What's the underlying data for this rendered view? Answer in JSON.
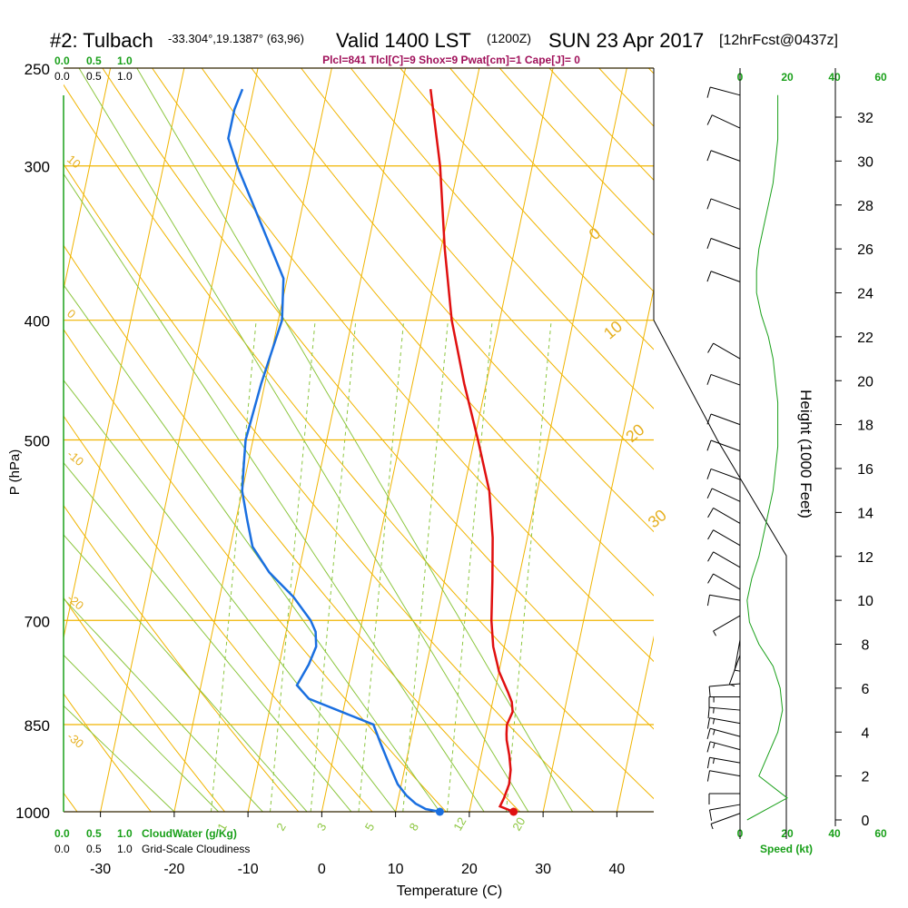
{
  "header": {
    "station": "#2: Tulbach",
    "coords": "-33.304°,19.1387° (63,96)",
    "valid": "Valid 1400 LST",
    "utc": "(1200Z)",
    "date": "SUN 23 Apr 2017",
    "forecast": "[12hrFcst@0437z]",
    "indices": "Plcl=841 Tlcl[C]=9 Shox=9 Pwat[cm]=1 Cape[J]= 0"
  },
  "colors": {
    "isobar": "#f0b400",
    "adiabat": "#8cc63f",
    "dry_adiabat": "#f0b400",
    "temperature": "#e01010",
    "dewpoint": "#1a6fe0",
    "green_text": "#1aa01a",
    "purple_text": "#a0105a"
  },
  "scales": {
    "cloudwater_top": [
      "0.0",
      "0.5",
      "1.0"
    ],
    "cloudiness_top": [
      "0.0",
      "0.5",
      "1.0"
    ],
    "cloudwater_bottom": [
      "0.0",
      "0.5",
      "1.0"
    ],
    "cloudwater_label": "CloudWater (g/Kg)",
    "cloudiness_bottom": [
      "0.0",
      "0.5",
      "1.0"
    ],
    "cloudiness_label": "Grid-Scale Cloudiness",
    "speed_top": [
      "0",
      "20",
      "40",
      "60"
    ],
    "speed_bottom": [
      "0",
      "20",
      "40",
      "60"
    ],
    "speed_label": "Speed (kt)"
  },
  "chart_data": {
    "type": "line",
    "xlabel": "Temperature (C)",
    "ylabel": "P (hPa)",
    "y2label": "Height (1000 Feet)",
    "xlim": [
      -35,
      45
    ],
    "ylim": [
      1000,
      250
    ],
    "x_ticks": [
      -30,
      -20,
      -10,
      0,
      10,
      20,
      30,
      40
    ],
    "pressure_ticks": [
      250,
      300,
      400,
      500,
      700,
      850,
      1000
    ],
    "height_ticks": [
      0,
      2,
      4,
      6,
      8,
      10,
      12,
      14,
      16,
      18,
      20,
      22,
      24,
      26,
      28,
      30,
      32
    ],
    "dry_adiabat_labels": [
      {
        "text": "10",
        "p": 300
      },
      {
        "text": "0",
        "p": 400
      },
      {
        "text": "-10",
        "p": 520
      },
      {
        "text": "-20",
        "p": 680
      },
      {
        "text": "-30",
        "p": 880
      }
    ],
    "moist_adiabat_labels": [
      {
        "text": "0",
        "t": 37,
        "p": 345
      },
      {
        "text": "10",
        "t": 39,
        "p": 415
      },
      {
        "text": "20",
        "t": 42,
        "p": 503
      },
      {
        "text": "30",
        "t": 45,
        "p": 590
      }
    ],
    "mixing_ratio_labels": [
      "1",
      "2",
      "3",
      "5",
      "8",
      "12",
      "20"
    ],
    "series": [
      {
        "name": "Temperature",
        "points": [
          [
            26.0,
            1000
          ],
          [
            24.0,
            990
          ],
          [
            24.3,
            975
          ],
          [
            24.6,
            950
          ],
          [
            24.4,
            925
          ],
          [
            23.8,
            900
          ],
          [
            23.0,
            875
          ],
          [
            22.8,
            865
          ],
          [
            22.6,
            850
          ],
          [
            23.0,
            830
          ],
          [
            22.6,
            815
          ],
          [
            21.8,
            800
          ],
          [
            20.0,
            770
          ],
          [
            18.5,
            735
          ],
          [
            17.5,
            700
          ],
          [
            16.5,
            650
          ],
          [
            15.3,
            600
          ],
          [
            13.5,
            550
          ],
          [
            10.5,
            500
          ],
          [
            7.0,
            450
          ],
          [
            3.5,
            400
          ],
          [
            0.5,
            350
          ],
          [
            -2.5,
            300
          ],
          [
            -6.0,
            260
          ]
        ]
      },
      {
        "name": "Dewpoint",
        "points": [
          [
            16.0,
            1000
          ],
          [
            14.0,
            995
          ],
          [
            12.5,
            985
          ],
          [
            11.0,
            970
          ],
          [
            9.5,
            950
          ],
          [
            8.0,
            920
          ],
          [
            6.0,
            880
          ],
          [
            5.0,
            860
          ],
          [
            4.5,
            850
          ],
          [
            1.0,
            835
          ],
          [
            -5.0,
            810
          ],
          [
            -7.0,
            790
          ],
          [
            -6.0,
            760
          ],
          [
            -5.5,
            735
          ],
          [
            -6.0,
            715
          ],
          [
            -7.0,
            700
          ],
          [
            -10.0,
            670
          ],
          [
            -14.0,
            640
          ],
          [
            -17.0,
            610
          ],
          [
            -18.5,
            580
          ],
          [
            -20.0,
            550
          ],
          [
            -20.5,
            525
          ],
          [
            -21.0,
            500
          ],
          [
            -20.5,
            450
          ],
          [
            -19.5,
            400
          ],
          [
            -20.5,
            370
          ],
          [
            -25.0,
            335
          ],
          [
            -30.0,
            300
          ],
          [
            -32.0,
            285
          ],
          [
            -32.0,
            270
          ],
          [
            -31.5,
            260
          ]
        ]
      }
    ],
    "surface_markers": [
      {
        "name": "Surface Temperature",
        "t": 26.0,
        "p": 1000
      },
      {
        "name": "Surface Dewpoint",
        "t": 16.0,
        "p": 1000
      }
    ],
    "wind_speed_profile_kt": [
      [
        0,
        3
      ],
      [
        1,
        20
      ],
      [
        2,
        8
      ],
      [
        3,
        12
      ],
      [
        4,
        16
      ],
      [
        5,
        18
      ],
      [
        6,
        17
      ],
      [
        7,
        14
      ],
      [
        8,
        8
      ],
      [
        9,
        4
      ],
      [
        10,
        3
      ],
      [
        11,
        5
      ],
      [
        12,
        8
      ],
      [
        13,
        10
      ],
      [
        14,
        12
      ],
      [
        15,
        14
      ],
      [
        16,
        15
      ],
      [
        17,
        16
      ],
      [
        18,
        16
      ],
      [
        19,
        16
      ],
      [
        20,
        15
      ],
      [
        21,
        14
      ],
      [
        22,
        12
      ],
      [
        23,
        9
      ],
      [
        24,
        7
      ],
      [
        25,
        7
      ],
      [
        26,
        8
      ],
      [
        27,
        10
      ],
      [
        28,
        12
      ],
      [
        29,
        14
      ],
      [
        30,
        15
      ],
      [
        31,
        16
      ],
      [
        32,
        16
      ],
      [
        33,
        16
      ]
    ],
    "wind_barbs": [
      {
        "h": 0.3,
        "dir": 250,
        "spd": 5
      },
      {
        "h": 0.7,
        "dir": 260,
        "spd": 10
      },
      {
        "h": 1.2,
        "dir": 270,
        "spd": 10
      },
      {
        "h": 2.0,
        "dir": 280,
        "spd": 10
      },
      {
        "h": 2.6,
        "dir": 280,
        "spd": 15
      },
      {
        "h": 3.2,
        "dir": 285,
        "spd": 15
      },
      {
        "h": 3.8,
        "dir": 285,
        "spd": 15
      },
      {
        "h": 4.4,
        "dir": 280,
        "spd": 15
      },
      {
        "h": 5.0,
        "dir": 275,
        "spd": 15
      },
      {
        "h": 5.6,
        "dir": 270,
        "spd": 15
      },
      {
        "h": 6.2,
        "dir": 265,
        "spd": 10
      },
      {
        "h": 7.5,
        "dir": 200,
        "spd": 5
      },
      {
        "h": 8.2,
        "dir": 190,
        "spd": 5
      },
      {
        "h": 9.3,
        "dir": 240,
        "spd": 5
      },
      {
        "h": 10.0,
        "dir": 280,
        "spd": 10
      },
      {
        "h": 10.5,
        "dir": 300,
        "spd": 10
      },
      {
        "h": 11.5,
        "dir": 300,
        "spd": 10
      },
      {
        "h": 12.5,
        "dir": 300,
        "spd": 10
      },
      {
        "h": 13.5,
        "dir": 300,
        "spd": 10
      },
      {
        "h": 14.5,
        "dir": 295,
        "spd": 10
      },
      {
        "h": 15.5,
        "dir": 290,
        "spd": 10
      },
      {
        "h": 16.8,
        "dir": 290,
        "spd": 10
      },
      {
        "h": 18.0,
        "dir": 290,
        "spd": 10
      },
      {
        "h": 19.8,
        "dir": 290,
        "spd": 10
      },
      {
        "h": 21.0,
        "dir": 300,
        "spd": 10
      },
      {
        "h": 24.5,
        "dir": 290,
        "spd": 10
      },
      {
        "h": 26.0,
        "dir": 290,
        "spd": 10
      },
      {
        "h": 27.8,
        "dir": 290,
        "spd": 10
      },
      {
        "h": 30.0,
        "dir": 290,
        "spd": 10
      },
      {
        "h": 31.5,
        "dir": 295,
        "spd": 10
      },
      {
        "h": 33.0,
        "dir": 285,
        "spd": 10
      }
    ]
  }
}
